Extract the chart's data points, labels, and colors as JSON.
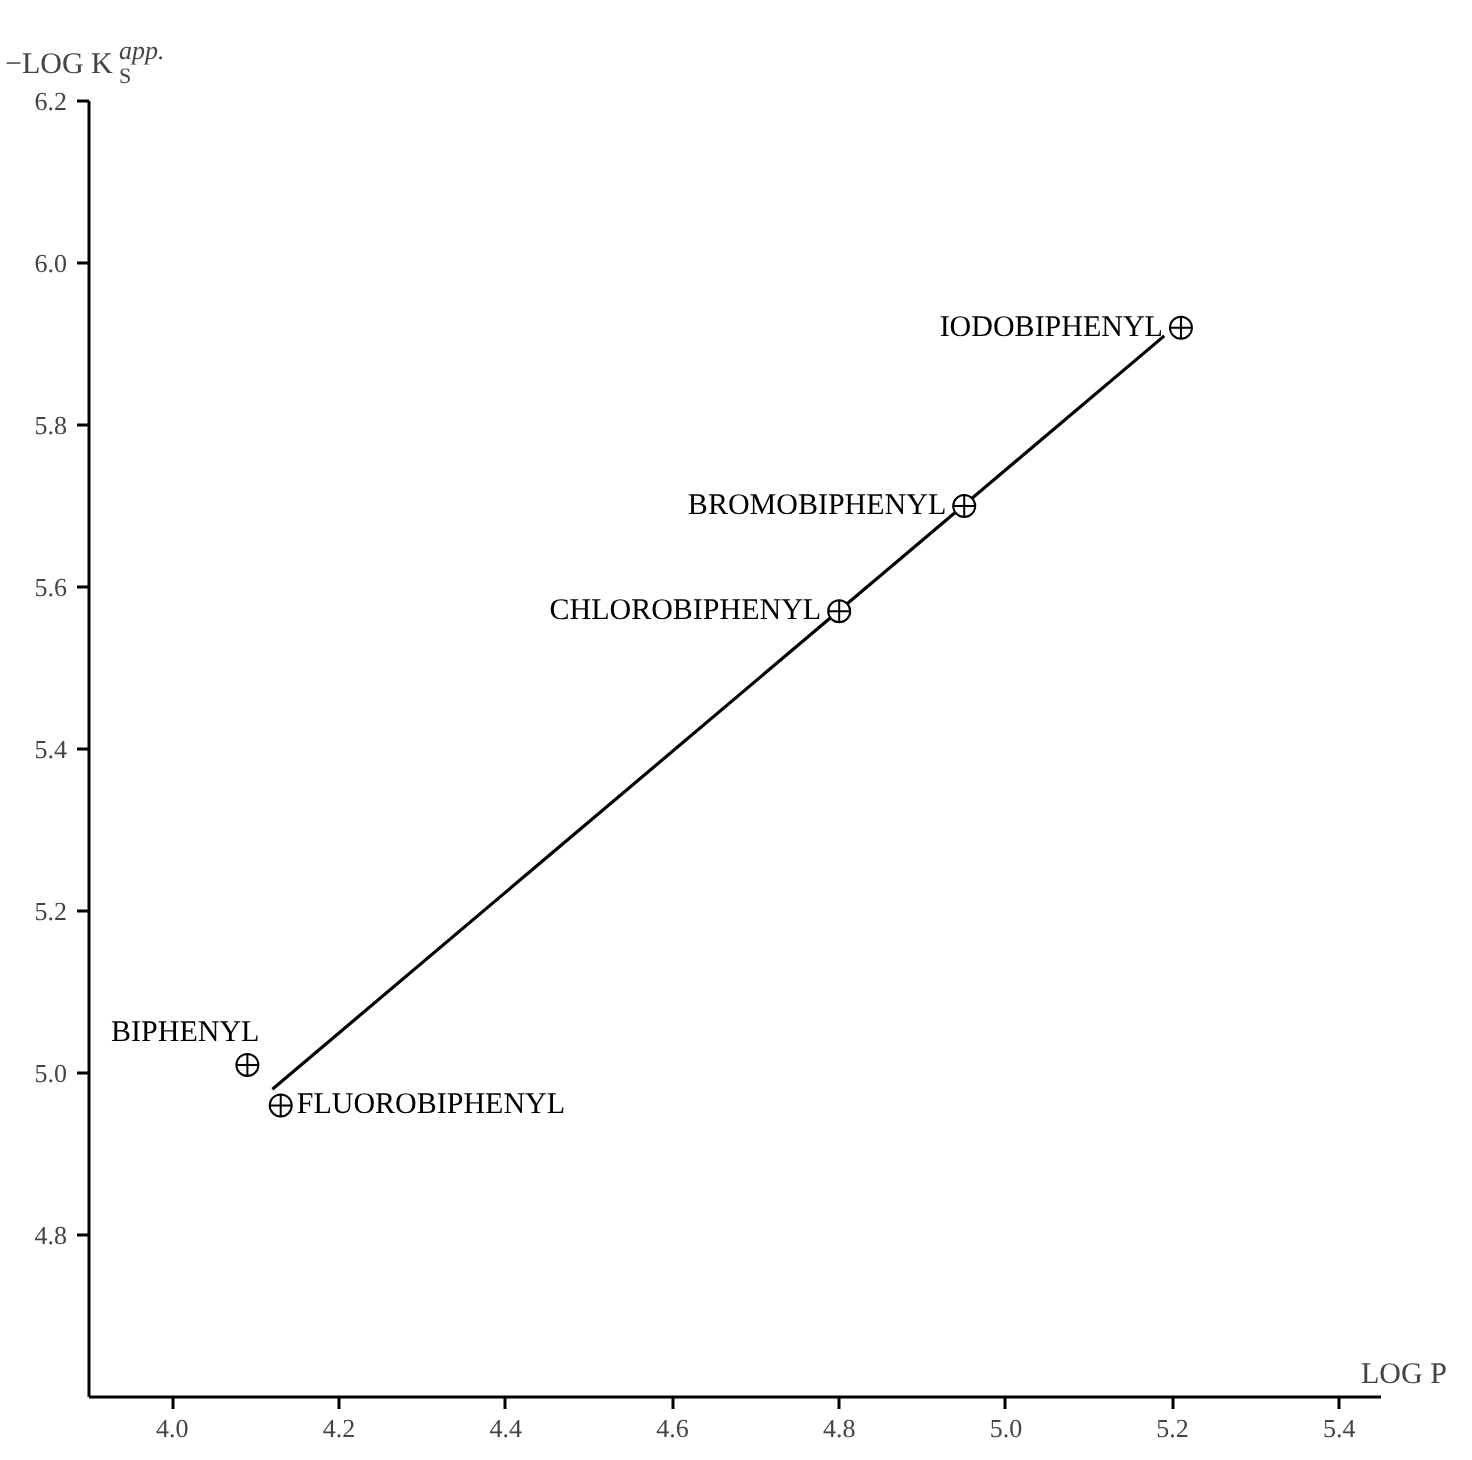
{
  "chart_data": {
    "type": "scatter",
    "xlabel": "LOG P",
    "ylabel": "−LOG K$^{app.}$$_{S}$",
    "x": [
      4.09,
      4.13,
      4.8,
      4.95,
      5.21
    ],
    "series": [
      {
        "color": "#000000",
        "marker": "circle",
        "values": [
          5.01,
          4.96,
          5.57,
          5.7,
          5.92
        ]
      },
      {
        "type": "line",
        "color": "#000000",
        "x": [
          4.12,
          5.19
        ],
        "values": [
          4.98,
          5.91
        ]
      }
    ],
    "line_style": "solid",
    "grid": false,
    "xlim": [
      3.9,
      5.45
    ],
    "ylim": [
      4.6,
      6.2
    ],
    "xticks": [
      {
        "value": 4.0,
        "label": "4.0"
      },
      {
        "value": 4.2,
        "label": "4.2"
      },
      {
        "value": 4.4,
        "label": "4.4"
      },
      {
        "value": 4.6,
        "label": "4.6"
      },
      {
        "value": 4.8,
        "label": "4.8"
      },
      {
        "value": 5.0,
        "label": "5.0"
      },
      {
        "value": 5.2,
        "label": "5.2"
      },
      {
        "value": 5.4,
        "label": "5.4"
      }
    ],
    "yticks": [
      {
        "value": 4.8,
        "label": "4.8"
      },
      {
        "value": 5.0,
        "label": "5.0"
      },
      {
        "value": 5.2,
        "label": "5.2"
      },
      {
        "value": 5.4,
        "label": "5.4"
      },
      {
        "value": 5.6,
        "label": "5.6"
      },
      {
        "value": 5.8,
        "label": "5.8"
      },
      {
        "value": 6.0,
        "label": "6.0"
      },
      {
        "value": 6.2,
        "label": "6.2"
      }
    ],
    "annotations": [
      {
        "text": "BIPHENYL",
        "x": 4.09,
        "y": 5.01
      },
      {
        "text": "FLUOROBIPHENYL",
        "x": 4.13,
        "y": 4.96
      },
      {
        "text": "CHLOROBIPHENYL",
        "x": 4.8,
        "y": 5.57
      },
      {
        "text": "BROMOBIPHENYL",
        "x": 4.95,
        "y": 5.7
      },
      {
        "text": "IODOBIPHENYL",
        "x": 5.21,
        "y": 5.92
      }
    ]
  }
}
